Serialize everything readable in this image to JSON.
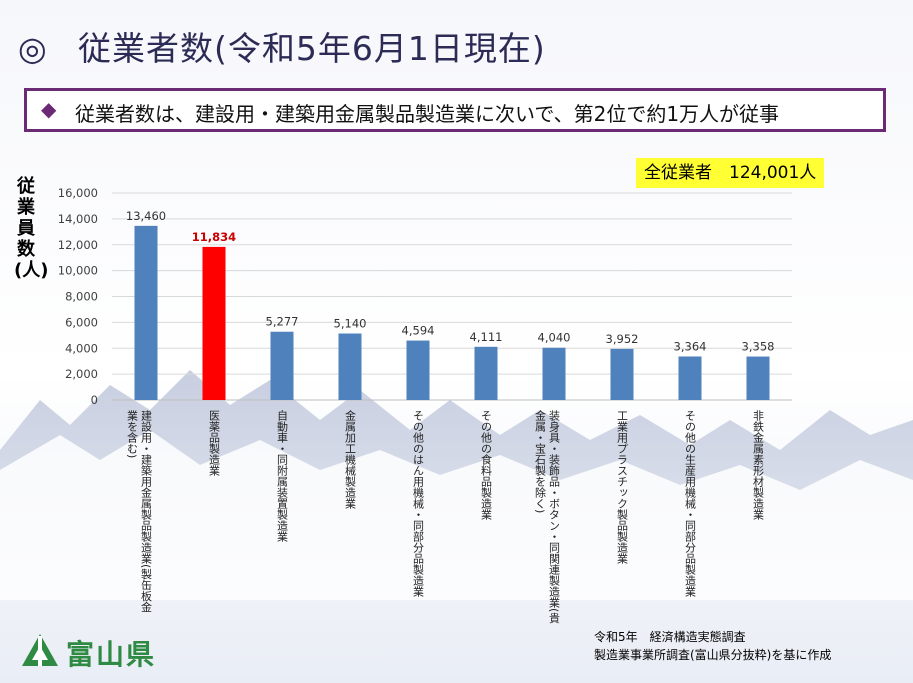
{
  "page": {
    "title_mark": "◎",
    "title": "従業者数(令和5年6月1日現在)",
    "headline_mark": "◆",
    "headline": "従業者数は、建設用・建築用金属製品製造業に次いで、第2位で約1万人が従事",
    "total_badge": "全従業者　124,001人",
    "source_line1": "令和5年　経済構造実態調査",
    "source_line2": "製造業事業所調査(富山県分抜粋)を基に作成",
    "logo_text": "富山県",
    "logo_icon": "toyama-prefecture-logo-icon"
  },
  "colors": {
    "bar": "#4f81bd",
    "highlight_bar": "#ff0000",
    "highlight_label": "#cc0000",
    "headline_border": "#6b2a74",
    "badge": "#ffff33",
    "logo": "#2f8a43"
  },
  "chart_data": {
    "type": "bar",
    "ylabel": "従業員数(人)",
    "ylim": [
      0,
      16000
    ],
    "yticks": [
      "0",
      "2,000",
      "4,000",
      "6,000",
      "8,000",
      "10,000",
      "12,000",
      "14,000",
      "16,000"
    ],
    "grid": true,
    "highlight_index": 1,
    "categories": [
      [
        "建設用・建築用金属製品製造業(製缶板金",
        "業を含む)"
      ],
      [
        "医薬品製造業"
      ],
      [
        "自動車・同附属装置製造業"
      ],
      [
        "金属加工機械製造業"
      ],
      [
        "その他のはん用機械・同部分品製造業"
      ],
      [
        "その他の食料品製造業"
      ],
      [
        "装身具・装飾品・ボタン・同関連製造業(貴",
        "金属・宝石製を除く)"
      ],
      [
        "工業用プラスチック製品製造業"
      ],
      [
        "その他の生産用機械・同部分品製造業"
      ],
      [
        "非鉄金属素形材製造業"
      ]
    ],
    "values": [
      13460,
      11834,
      5277,
      5140,
      4594,
      4111,
      4040,
      3952,
      3364,
      3358
    ],
    "value_labels": [
      "13,460",
      "11,834",
      "5,277",
      "5,140",
      "4,594",
      "4,111",
      "4,040",
      "3,952",
      "3,364",
      "3,358"
    ]
  }
}
